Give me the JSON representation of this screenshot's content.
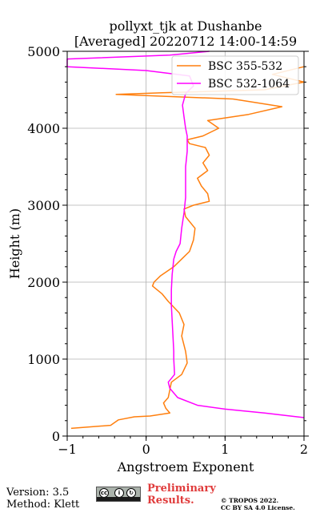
{
  "chart_data": {
    "type": "line",
    "title": "pollyxt_tjk at Dushanbe",
    "subtitle": "[Averaged] 20220712 14:00-14:59",
    "xlabel": "Angstroem Exponent",
    "ylabel": "Height (m)",
    "xlim": [
      -1,
      2
    ],
    "ylim": [
      0,
      5000
    ],
    "xticks": [
      "−1",
      "0",
      "1",
      "2"
    ],
    "yticks": [
      "0",
      "1000",
      "2000",
      "3000",
      "4000",
      "5000"
    ],
    "grid": true,
    "legend_position": "top-right",
    "series": [
      {
        "name": "BSC 355-532",
        "color": "#ff7f0e",
        "points": [
          [
            -0.95,
            100
          ],
          [
            -0.45,
            140
          ],
          [
            -0.35,
            210
          ],
          [
            -0.15,
            250
          ],
          [
            0.05,
            260
          ],
          [
            0.3,
            300
          ],
          [
            0.25,
            360
          ],
          [
            0.22,
            430
          ],
          [
            0.28,
            500
          ],
          [
            0.3,
            600
          ],
          [
            0.32,
            700
          ],
          [
            0.45,
            800
          ],
          [
            0.52,
            950
          ],
          [
            0.5,
            1100
          ],
          [
            0.45,
            1300
          ],
          [
            0.48,
            1450
          ],
          [
            0.42,
            1600
          ],
          [
            0.28,
            1750
          ],
          [
            0.2,
            1850
          ],
          [
            0.08,
            1950
          ],
          [
            0.1,
            2000
          ],
          [
            0.18,
            2080
          ],
          [
            0.35,
            2200
          ],
          [
            0.45,
            2300
          ],
          [
            0.55,
            2400
          ],
          [
            0.6,
            2550
          ],
          [
            0.62,
            2700
          ],
          [
            0.5,
            2850
          ],
          [
            0.48,
            2950
          ],
          [
            0.6,
            3000
          ],
          [
            0.8,
            3050
          ],
          [
            0.78,
            3150
          ],
          [
            0.7,
            3250
          ],
          [
            0.65,
            3350
          ],
          [
            0.78,
            3450
          ],
          [
            0.72,
            3550
          ],
          [
            0.8,
            3650
          ],
          [
            0.75,
            3750
          ],
          [
            0.55,
            3800
          ],
          [
            0.52,
            3850
          ],
          [
            0.72,
            3900
          ],
          [
            0.92,
            4000
          ],
          [
            0.78,
            4100
          ],
          [
            1.3,
            4180
          ],
          [
            1.72,
            4280
          ],
          [
            1.1,
            4380
          ],
          [
            -0.38,
            4440
          ],
          [
            0.2,
            4460
          ],
          [
            1.5,
            4500
          ],
          [
            2.0,
            4600
          ],
          [
            1.6,
            4700
          ],
          [
            2.0,
            4800
          ]
        ]
      },
      {
        "name": "BSC 532-1064",
        "color": "#ff00ff",
        "points": [
          [
            2.0,
            240
          ],
          [
            1.5,
            300
          ],
          [
            1.0,
            350
          ],
          [
            0.65,
            400
          ],
          [
            0.4,
            500
          ],
          [
            0.3,
            620
          ],
          [
            0.28,
            700
          ],
          [
            0.36,
            800
          ],
          [
            0.35,
            1000
          ],
          [
            0.35,
            1100
          ],
          [
            0.34,
            1300
          ],
          [
            0.33,
            1500
          ],
          [
            0.32,
            1700
          ],
          [
            0.32,
            1900
          ],
          [
            0.33,
            2100
          ],
          [
            0.35,
            2300
          ],
          [
            0.38,
            2400
          ],
          [
            0.43,
            2500
          ],
          [
            0.45,
            2700
          ],
          [
            0.48,
            2900
          ],
          [
            0.5,
            3100
          ],
          [
            0.5,
            3300
          ],
          [
            0.5,
            3500
          ],
          [
            0.52,
            3700
          ],
          [
            0.52,
            3900
          ],
          [
            0.5,
            4000
          ],
          [
            0.48,
            4150
          ],
          [
            0.46,
            4300
          ],
          [
            0.5,
            4450
          ],
          [
            0.6,
            4550
          ],
          [
            0.55,
            4680
          ],
          [
            0.0,
            4750
          ],
          [
            -1.0,
            4800
          ],
          [
            -1.0,
            4900
          ],
          [
            0.3,
            4950
          ],
          [
            0.8,
            5000
          ]
        ]
      }
    ]
  },
  "footer": {
    "version": "Version: 3.5",
    "method": "Method: Klett",
    "cc_badge": "by-sa-badge",
    "preliminary_line1": "Preliminary",
    "preliminary_line2": "Results.",
    "copyright_line1": "© TROPOS 2022.",
    "copyright_line2": "CC BY SA 4.0 License.",
    "prelim_color": "#e03b3b"
  }
}
